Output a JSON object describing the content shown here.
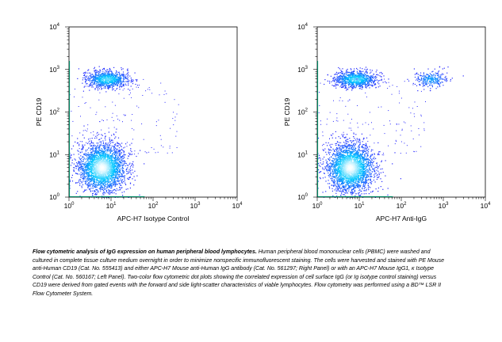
{
  "chart_data": [
    {
      "type": "scatter",
      "title": "",
      "xlabel": "APC-H7 Isotype Control",
      "ylabel": "PE CD19",
      "xscale": "log",
      "yscale": "log",
      "xlim": [
        1,
        10000
      ],
      "ylim": [
        1,
        10000
      ],
      "x_ticks": [
        "10^0",
        "10^1",
        "10^2",
        "10^3",
        "10^4"
      ],
      "y_ticks": [
        "10^0",
        "10^1",
        "10^2",
        "10^3",
        "10^4"
      ],
      "grid": false,
      "populations": [
        {
          "label": "CD19- lymphocytes",
          "x_center": 6,
          "y_center": 5,
          "x_spread_decades": 0.28,
          "y_spread_decades": 0.28,
          "density": "high"
        },
        {
          "label": "CD19+ B cells",
          "x_center": 8,
          "y_center": 600,
          "x_spread_decades": 0.25,
          "y_spread_decades": 0.1,
          "density": "medium"
        }
      ]
    },
    {
      "type": "scatter",
      "title": "",
      "xlabel": "APC-H7 Anti-IgG",
      "ylabel": "PE CD19",
      "xscale": "log",
      "yscale": "log",
      "xlim": [
        1,
        10000
      ],
      "ylim": [
        1,
        10000
      ],
      "x_ticks": [
        "10^0",
        "10^1",
        "10^2",
        "10^3",
        "10^4"
      ],
      "y_ticks": [
        "10^0",
        "10^1",
        "10^2",
        "10^3",
        "10^4"
      ],
      "grid": false,
      "populations": [
        {
          "label": "CD19- lymphocytes",
          "x_center": 6,
          "y_center": 5,
          "x_spread_decades": 0.28,
          "y_spread_decades": 0.28,
          "density": "high"
        },
        {
          "label": "CD19+ IgG- B cells",
          "x_center": 8,
          "y_center": 600,
          "x_spread_decades": 0.25,
          "y_spread_decades": 0.1,
          "density": "medium"
        },
        {
          "label": "CD19+ IgG+ B cells",
          "x_center": 500,
          "y_center": 600,
          "x_spread_decades": 0.2,
          "y_spread_decades": 0.1,
          "density": "low"
        }
      ]
    }
  ],
  "colors": {
    "density_low": "#2a2aff",
    "density_mid": "#00c8ff",
    "density_high": "#ffffff",
    "axis_edge": "#00d9a0"
  },
  "caption": {
    "title": "Flow cytometric analysis of IgG expression on human peripheral blood lymphocytes.",
    "body": "Human peripheral blood mononuclear cells (PBMC) were washed and cultured in complete tissue culture medium overnight in order to minimize nonspecific immunofluorescent staining. The cells were harvested and stained with PE Mouse anti-Human CD19 (Cat. No. 555413) and either APC-H7 Mouse anti-Human IgG antibody (Cat. No. 561297; Right Panel) or with an APC-H7 Mouse IgG1, κ Isotype Control (Cat. No. 560167; Left Panel). Two-color flow cytometric dot plots showing the correlated expression of cell surface IgG (or Ig isotype control staining) versus CD19 were derived from gated events with the forward and side light-scatter characteristics of viable lymphocytes. Flow cytometry was performed using a BD™ LSR II Flow Cytometer System."
  }
}
